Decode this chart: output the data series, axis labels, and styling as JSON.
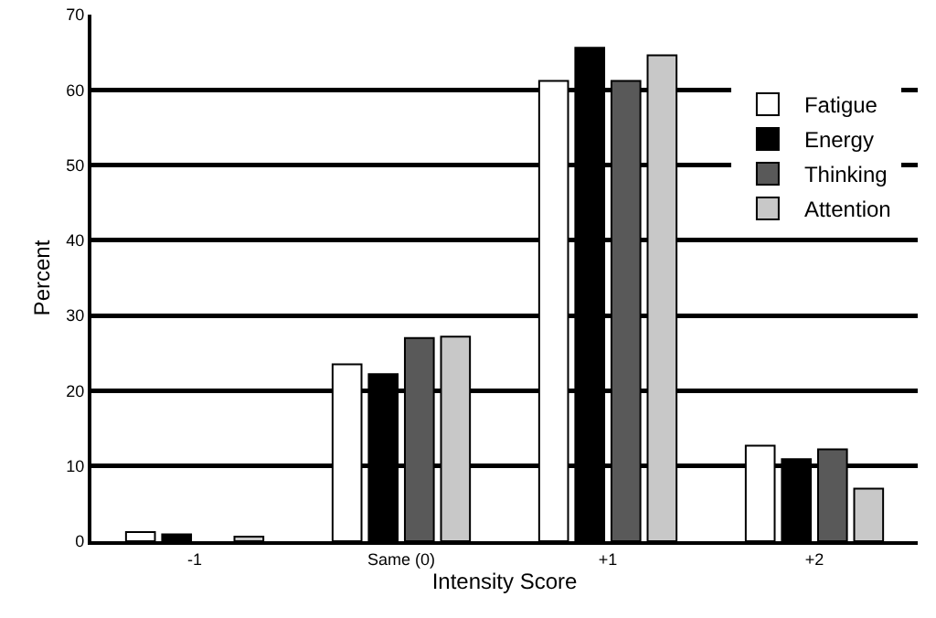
{
  "chart_data": {
    "type": "bar",
    "xlabel": "Intensity Score",
    "ylabel": "Percent",
    "categories": [
      "-1",
      "Same (0)",
      "+1",
      "+2"
    ],
    "series": [
      {
        "name": "Fatigue",
        "color": "#ffffff",
        "values": [
          1.2,
          23.5,
          61.2,
          12.7
        ]
      },
      {
        "name": "Energy",
        "color": "#000000",
        "values": [
          0.9,
          22.2,
          65.6,
          10.9
        ]
      },
      {
        "name": "Thinking",
        "color": "#595959",
        "values": [
          null,
          27,
          61.2,
          12.2
        ]
      },
      {
        "name": "Attention",
        "color": "#c8c8c8",
        "values": [
          0.6,
          27.2,
          64.6,
          7
        ]
      }
    ],
    "ylim": [
      0,
      70
    ],
    "yticks": [
      0,
      10,
      20,
      30,
      40,
      50,
      60,
      70
    ],
    "grid": "y",
    "legend": "top right"
  }
}
